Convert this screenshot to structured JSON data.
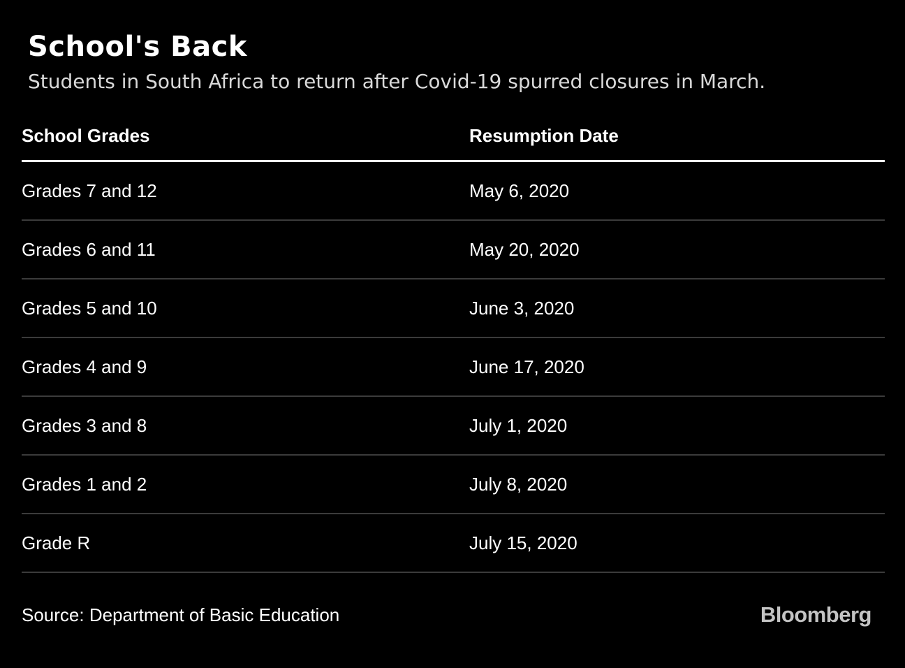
{
  "header": {
    "title": "School's Back",
    "subtitle": "Students in South Africa to return after Covid-19 spurred closures in March."
  },
  "chart_data": {
    "type": "table",
    "title": "School's Back",
    "subtitle": "Students in South Africa to return after Covid-19 spurred closures in March.",
    "columns": [
      "School Grades",
      "Resumption Date"
    ],
    "rows": [
      [
        "Grades 7 and 12",
        "May 6, 2020"
      ],
      [
        "Grades 6 and 11",
        "May 20, 2020"
      ],
      [
        "Grades 5 and 10",
        "June 3, 2020"
      ],
      [
        "Grades 4 and 9",
        "June 17, 2020"
      ],
      [
        "Grades 3 and 8",
        "July 1, 2020"
      ],
      [
        "Grades 1 and 2",
        "July 8, 2020"
      ],
      [
        "Grade R",
        "July 15, 2020"
      ]
    ],
    "source": "Department of Basic Education"
  },
  "footer": {
    "source": "Source: Department of Basic Education",
    "brand": "Bloomberg"
  },
  "colors": {
    "background": "#000000",
    "text": "#ffffff",
    "subtitle": "#d9d9d9",
    "header_rule": "#f1f1f1",
    "row_divider": "#3b3b3b",
    "brand": "#c4c4c4"
  }
}
